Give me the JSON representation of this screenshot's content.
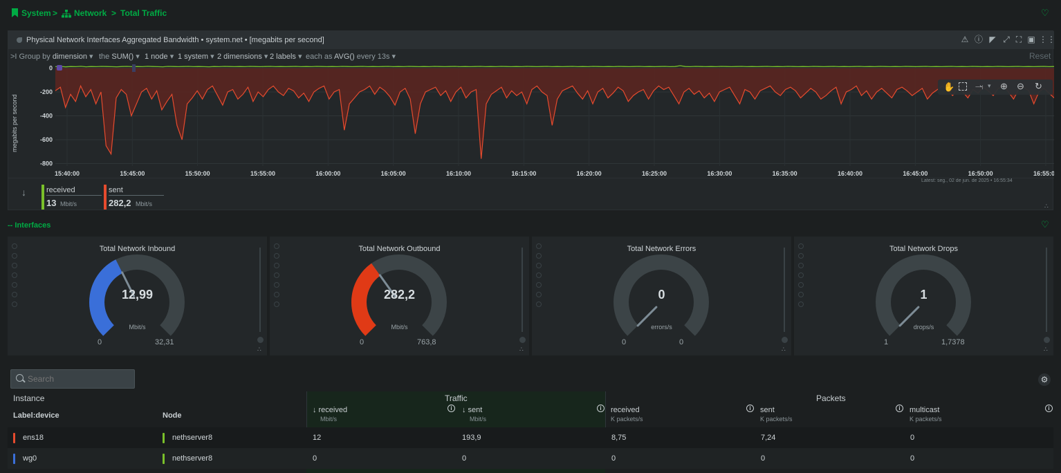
{
  "breadcrumb": {
    "system": "System",
    "sep1": ">",
    "network": "Network",
    "sep2": ">",
    "total": "Total Traffic"
  },
  "chart_header": {
    "title": "Physical Network Interfaces Aggregated Bandwidth",
    "context": "• system.net •",
    "units": "[megabits per second]"
  },
  "controls": {
    "group_by_prefix": ">I Group by",
    "group_by": "dimension",
    "the": "the",
    "agg": "SUM()",
    "nodes": "1 node",
    "systems": "1 system",
    "dimensions": "2 dimensions",
    "labels": "2 labels",
    "each_as": "each as",
    "each_agg": "AVG()",
    "every": "every 13s",
    "reset": "Reset"
  },
  "chart_data": {
    "type": "area",
    "ylabel": "megabits per second",
    "yticks": [
      0,
      -200,
      -400,
      -600,
      -800
    ],
    "ylim": [
      -820,
      20
    ],
    "xticks": [
      "15:40:00",
      "15:45:00",
      "15:50:00",
      "15:55:00",
      "16:00:00",
      "16:05:00",
      "16:10:00",
      "16:15:00",
      "16:20:00",
      "16:25:00",
      "16:30:00",
      "16:35:00",
      "16:40:00",
      "16:45:00",
      "16:50:00",
      "16:55:00"
    ],
    "series": [
      {
        "name": "received",
        "color": "#7ac02a",
        "values": [
          12,
          14,
          10,
          13,
          12,
          15,
          11,
          13,
          12,
          14,
          13,
          12,
          11,
          13,
          14,
          12,
          13,
          12,
          15,
          13,
          12,
          11,
          14,
          13,
          12,
          13,
          14,
          12,
          13,
          12,
          11,
          13,
          12,
          14,
          13,
          12,
          13,
          12,
          14,
          13,
          12,
          13,
          14,
          12,
          13,
          12,
          13,
          14,
          12,
          13,
          12,
          14,
          13,
          12,
          13,
          12,
          14,
          13,
          12,
          13,
          14,
          12,
          13,
          12,
          13,
          14,
          12,
          13,
          12,
          14,
          13,
          12,
          13,
          12,
          14,
          13,
          12,
          13,
          14,
          12,
          13,
          12,
          13,
          14,
          12,
          13,
          12,
          14,
          13,
          12,
          13,
          12,
          14,
          13,
          12,
          13,
          14,
          12,
          13,
          12,
          13,
          14,
          12,
          13,
          12,
          14,
          13,
          12,
          13,
          12,
          14,
          13,
          12,
          13,
          14,
          12,
          13,
          12,
          13,
          14,
          12,
          13,
          20,
          13,
          12,
          14,
          13,
          12,
          13,
          12,
          14,
          13,
          12,
          13,
          14,
          12,
          13,
          12,
          13,
          14,
          12,
          13,
          12,
          14,
          13,
          12,
          13,
          12,
          14,
          13,
          12,
          13,
          14,
          12,
          13,
          12,
          13,
          14,
          12,
          13,
          12,
          14,
          13,
          12,
          13,
          12,
          14,
          13,
          12,
          13,
          14,
          12,
          13,
          12,
          13,
          14,
          12,
          13,
          12,
          14,
          13,
          12,
          13,
          12,
          14,
          13,
          12,
          13,
          14,
          12,
          13,
          12,
          13,
          14,
          12,
          13
        ]
      },
      {
        "name": "sent",
        "color": "#e64b2e",
        "values": [
          -190,
          -160,
          -330,
          -220,
          -280,
          -150,
          -240,
          -180,
          -300,
          -200,
          -650,
          -720,
          -250,
          -180,
          -220,
          -400,
          -300,
          -200,
          -170,
          -260,
          -190,
          -350,
          -280,
          -220,
          -480,
          -600,
          -300,
          -250,
          -190,
          -260,
          -180,
          -150,
          -230,
          -310,
          -200,
          -180,
          -260,
          -220,
          -160,
          -280,
          -200,
          -240,
          -180,
          -150,
          -200,
          -230,
          -170,
          -190,
          -250,
          -210,
          -280,
          -200,
          -170,
          -150,
          -260,
          -200,
          -180,
          -520,
          -300,
          -250,
          -200,
          -180,
          -150,
          -220,
          -160,
          -190,
          -240,
          -310,
          -200,
          -170,
          -260,
          -550,
          -300,
          -200,
          -180,
          -160,
          -230,
          -190,
          -280,
          -200,
          -160,
          -250,
          -200,
          -180,
          -760,
          -300,
          -220,
          -190,
          -160,
          -250,
          -190,
          -230,
          -200,
          -300,
          -180,
          -150,
          -200,
          -230,
          -480,
          -260,
          -190,
          -170,
          -150,
          -210,
          -260,
          -190,
          -300,
          -200,
          -170,
          -250,
          -210,
          -160,
          -190,
          -280,
          -230,
          -200,
          -180,
          -260,
          -190,
          -150,
          -180,
          -160,
          -230,
          -300,
          -200,
          -170,
          -220,
          -190,
          -250,
          -210,
          -280,
          -200,
          -180,
          -160,
          -230,
          -300,
          -180,
          -200,
          -260,
          -190,
          -170,
          -150,
          -200,
          -230,
          -180,
          -160,
          -190,
          -250,
          -210,
          -170,
          -200,
          -260,
          -230,
          -190,
          -160,
          -300,
          -200,
          -180,
          -150,
          -230,
          -190,
          -260,
          -200,
          -170,
          -210,
          -250,
          -180,
          -160,
          -190,
          -230,
          -200,
          -170,
          -260,
          -210,
          -180,
          -150,
          -190,
          -230,
          -160,
          -200,
          -250,
          -180,
          -210,
          -160,
          -190,
          -230,
          -170,
          -150,
          -200,
          -260,
          -180,
          -160,
          -190,
          -300,
          -200,
          -170,
          -210,
          -250
        ]
      }
    ]
  },
  "latest": "Latest: seg., 02 de jun. de 2025 • 16:55:34",
  "legend": [
    {
      "name": "received",
      "value": "13",
      "unit": "Mbit/s",
      "color": "#7ac02a"
    },
    {
      "name": "sent",
      "value": "282,2",
      "unit": "Mbit/s",
      "color": "#e64b2e"
    }
  ],
  "interfaces_heading": "-- Interfaces",
  "gauges": [
    {
      "title": "Total Network Inbound",
      "value": "12,99",
      "unit": "Mbit/s",
      "min": "0",
      "max": "32,31",
      "fraction": 0.402,
      "color": "#3a6fd9"
    },
    {
      "title": "Total Network Outbound",
      "value": "282,2",
      "unit": "Mbit/s",
      "min": "0",
      "max": "763,8",
      "fraction": 0.369,
      "color": "#e03a16"
    },
    {
      "title": "Total Network Errors",
      "value": "0",
      "unit": "errors/s",
      "min": "0",
      "max": "0",
      "fraction": 0,
      "color": "#3a6fd9"
    },
    {
      "title": "Total Network Drops",
      "value": "1",
      "unit": "drops/s",
      "min": "1",
      "max": "1,7378",
      "fraction": 0,
      "color": "#3a6fd9"
    }
  ],
  "search": {
    "placeholder": "Search"
  },
  "table": {
    "group_instance": "Instance",
    "group_traffic": "Traffic",
    "group_packets": "Packets",
    "col_label": "Label:device",
    "col_node": "Node",
    "cols": [
      {
        "label": "received",
        "unit": "Mbit/s"
      },
      {
        "label": "sent",
        "unit": "Mbit/s"
      },
      {
        "label": "received",
        "unit": "K packets/s"
      },
      {
        "label": "sent",
        "unit": "K packets/s"
      },
      {
        "label": "multicast",
        "unit": "K packets/s"
      }
    ],
    "rows": [
      {
        "device": "ens18",
        "device_color": "#e64b2e",
        "node": "nethserver8",
        "vals": [
          "12",
          "193,9",
          "8,75",
          "7,24",
          "0"
        ]
      },
      {
        "device": "wg0",
        "device_color": "#3a6fd9",
        "node": "nethserver8",
        "vals": [
          "0",
          "0",
          "0",
          "0",
          "0"
        ]
      }
    ]
  }
}
